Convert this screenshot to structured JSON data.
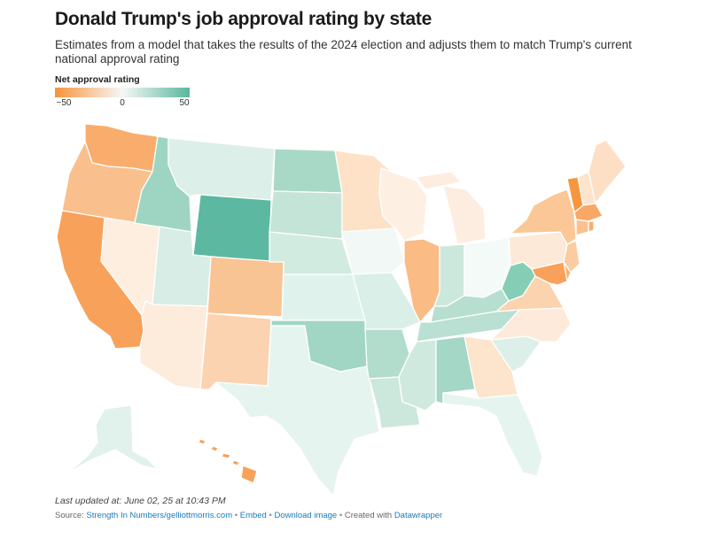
{
  "header": {
    "title": "Donald Trump's job approval rating by state",
    "subtitle": "Estimates from a model that takes the results of the 2024 election and adjusts them to match Trump's current national approval rating"
  },
  "legend": {
    "title": "Net approval rating",
    "ticks": [
      "−50",
      "0",
      "50"
    ],
    "color_low": "#f7933b",
    "color_mid": "#f7f7f7",
    "color_high": "#5ab79e"
  },
  "footer": {
    "updated": "Last updated at: June 02, 25 at 10:43 PM",
    "source_prefix": "Source: ",
    "source_link": "Strength In Numbers/gelliottmorris.com",
    "embed": "Embed",
    "download": "Download image",
    "created": "Created with ",
    "datawrapper": "Datawrapper",
    "bullet": "•"
  },
  "chart_data": {
    "type": "choropleth",
    "metric": "Net approval rating",
    "scale": [
      -50,
      50
    ],
    "state_colors": {
      "WA": "#f8ad6c",
      "OR": "#f9c08e",
      "CA": "#f8a15a",
      "NV": "#fdeee0",
      "ID": "#9ed5c2",
      "MT": "#dcefe8",
      "WY": "#5cb8a0",
      "UT": "#d7ede5",
      "AZ": "#fdebdc",
      "CO": "#f9c493",
      "NM": "#fbd3b0",
      "ND": "#a8d9c7",
      "SD": "#c4e4d7",
      "NE": "#d2ebe1",
      "KS": "#e0f2ec",
      "OK": "#a0d6c3",
      "TX": "#e6f4ef",
      "MN": "#fde2c8",
      "IA": "#f1f8f5",
      "MO": "#d9efe7",
      "AR": "#b2ddcd",
      "LA": "#cce7dc",
      "WI": "#fdf0e3",
      "IL": "#fabb85",
      "MI": "#fdede0",
      "IN": "#cce8dc",
      "OH": "#f4faf8",
      "KY": "#b6dfd0",
      "TN": "#b9e0d2",
      "MS": "#d0e9df",
      "AL": "#a4d7c5",
      "WV": "#86cdb6",
      "VA": "#fbd3ae",
      "NC": "#fdeadb",
      "SC": "#dcf0e9",
      "GA": "#fce4cd",
      "FL": "#e6f4ef",
      "PA": "#fde9d7",
      "NY": "#fbc796",
      "VT": "#f7963f",
      "NH": "#fde4cb",
      "ME": "#fddfc6",
      "MA": "#f8a765",
      "RI": "#f9ac6c",
      "CT": "#fbc291",
      "NJ": "#fbcc9f",
      "DE": "#f9b275",
      "MD": "#f8a15a",
      "AK": "#e1f1ec",
      "HI": "#f8a15a"
    }
  }
}
